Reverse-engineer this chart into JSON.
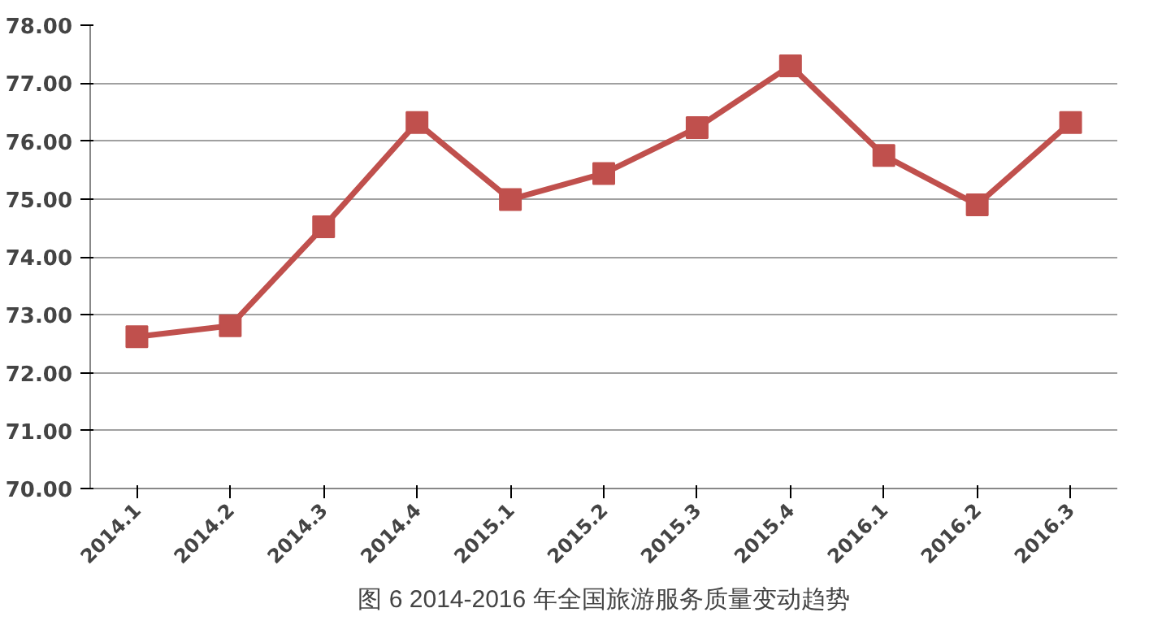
{
  "chart_data": {
    "type": "line",
    "title": "图 6 2014-2016 年全国旅游服务质量变动趋势",
    "categories": [
      "2014.1",
      "2014.2",
      "2014.3",
      "2014.4",
      "2015.1",
      "2015.2",
      "2015.3",
      "2015.4",
      "2016.1",
      "2016.2",
      "2016.3"
    ],
    "series": [
      {
        "color": "#c0504d",
        "values": [
          72.62,
          72.81,
          74.52,
          76.32,
          74.99,
          75.44,
          76.23,
          77.3,
          75.75,
          74.9,
          76.32
        ]
      }
    ],
    "ylim": [
      70,
      78
    ],
    "yticks": [
      {
        "value": 70,
        "label": "70.00"
      },
      {
        "value": 71,
        "label": "71.00"
      },
      {
        "value": 72,
        "label": "72.00"
      },
      {
        "value": 73,
        "label": "73.00"
      },
      {
        "value": 74,
        "label": "74.00"
      },
      {
        "value": 75,
        "label": "75.00"
      },
      {
        "value": 76,
        "label": "76.00"
      },
      {
        "value": 77,
        "label": "77.00"
      },
      {
        "value": 78,
        "label": "78.00"
      }
    ],
    "grid": "y",
    "marker": "square",
    "line_style": "solid"
  }
}
